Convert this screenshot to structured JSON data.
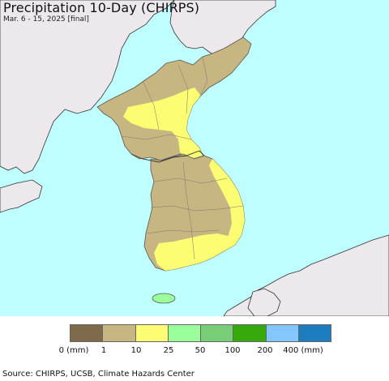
{
  "title": "Precipitation 10-Day (CHIRPS)",
  "subtitle": "Mar. 6 - 15, 2025 [final]",
  "source": "Source: CHIRPS, UCSB, Climate Hazards Center",
  "colors": {
    "ocean": "#bfffff",
    "foreign_land": "#ede8ec",
    "bin_0_1": "#7f6a4b",
    "bin_1_10": "#c8b682",
    "bin_10_25": "#fdfd73",
    "bin_25_50": "#9afe9a",
    "bin_50_100": "#78ce77",
    "bin_100_200": "#36a90d",
    "bin_200_400": "#84c6ff",
    "bin_400_plus": "#1d7dbf"
  },
  "legend": {
    "swatches": [
      "#7f6a4b",
      "#c8b682",
      "#fdfd73",
      "#9afe9a",
      "#78ce77",
      "#36a90d",
      "#84c6ff",
      "#1d7dbf"
    ],
    "tick_labels": [
      "0 (mm)",
      "1",
      "10",
      "25",
      "50",
      "100",
      "200",
      "400 (mm)"
    ]
  }
}
